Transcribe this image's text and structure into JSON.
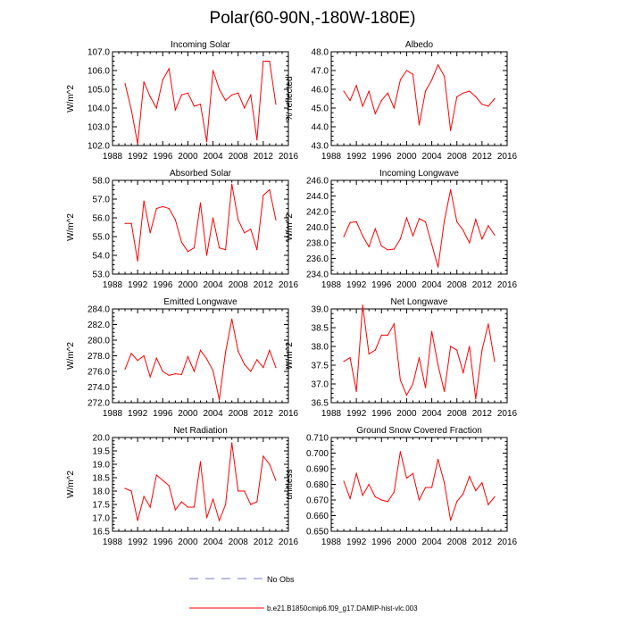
{
  "page_title": "Polar(60-90N,-180W-180E)",
  "series_color": "#ff0000",
  "obs_color": "#7777cc",
  "legend": {
    "obs_label": "No Obs",
    "model_label": "b.e21.B1850cmip6.f09_g17.DAMIP-hist-vlc.003"
  },
  "chart_data": [
    {
      "type": "line",
      "title": "Incoming Solar",
      "xlabel": "",
      "ylabel": "W/m^2",
      "xlim": [
        1988,
        2016
      ],
      "ylim": [
        102.0,
        107.0
      ],
      "x_ticks": [
        "1988",
        "1992",
        "1996",
        "2000",
        "2004",
        "2008",
        "2012",
        "2016"
      ],
      "y_ticks": [
        "102.0",
        "103.0",
        "104.0",
        "105.0",
        "106.0",
        "107.0"
      ],
      "x": [
        1990,
        1991,
        1992,
        1993,
        1994,
        1995,
        1996,
        1997,
        1998,
        1999,
        2000,
        2001,
        2002,
        2003,
        2004,
        2005,
        2006,
        2007,
        2008,
        2009,
        2010,
        2011,
        2012,
        2013,
        2014
      ],
      "series": [
        {
          "name": "b.e21.B1850cmip6.f09_g17.DAMIP-hist-vlc.003",
          "values": [
            105.3,
            103.9,
            102.1,
            105.4,
            104.6,
            104.0,
            105.5,
            106.1,
            103.9,
            104.7,
            104.8,
            104.1,
            104.2,
            102.2,
            106.0,
            105.0,
            104.4,
            104.7,
            104.8,
            104.0,
            104.7,
            102.3,
            106.5,
            106.5,
            104.2
          ]
        }
      ]
    },
    {
      "type": "line",
      "title": "Albedo",
      "xlabel": "",
      "ylabel": "% reflected",
      "xlim": [
        1988,
        2016
      ],
      "ylim": [
        43.0,
        48.0
      ],
      "x_ticks": [
        "1988",
        "1992",
        "1996",
        "2000",
        "2004",
        "2008",
        "2012",
        "2016"
      ],
      "y_ticks": [
        "43.0",
        "44.0",
        "45.0",
        "46.0",
        "47.0",
        "48.0"
      ],
      "x": [
        1990,
        1991,
        1992,
        1993,
        1994,
        1995,
        1996,
        1997,
        1998,
        1999,
        2000,
        2001,
        2002,
        2003,
        2004,
        2005,
        2006,
        2007,
        2008,
        2009,
        2010,
        2011,
        2012,
        2013,
        2014
      ],
      "series": [
        {
          "name": "b.e21.B1850cmip6.f09_g17.DAMIP-hist-vlc.003",
          "values": [
            45.9,
            45.4,
            46.2,
            45.1,
            45.9,
            44.7,
            45.4,
            45.8,
            45.0,
            46.5,
            47.0,
            46.8,
            44.1,
            45.9,
            46.5,
            47.3,
            46.7,
            43.8,
            45.6,
            45.8,
            45.9,
            45.6,
            45.2,
            45.1,
            45.5
          ]
        }
      ]
    },
    {
      "type": "line",
      "title": "Absorbed Solar",
      "xlabel": "",
      "ylabel": "W/m^2",
      "xlim": [
        1988,
        2016
      ],
      "ylim": [
        53.0,
        58.0
      ],
      "x_ticks": [
        "1988",
        "1992",
        "1996",
        "2000",
        "2004",
        "2008",
        "2012",
        "2016"
      ],
      "y_ticks": [
        "53.0",
        "54.0",
        "55.0",
        "56.0",
        "57.0",
        "58.0"
      ],
      "x": [
        1990,
        1991,
        1992,
        1993,
        1994,
        1995,
        1996,
        1997,
        1998,
        1999,
        2000,
        2001,
        2002,
        2003,
        2004,
        2005,
        2006,
        2007,
        2008,
        2009,
        2010,
        2011,
        2012,
        2013,
        2014
      ],
      "series": [
        {
          "name": "b.e21.B1850cmip6.f09_g17.DAMIP-hist-vlc.003",
          "values": [
            55.7,
            55.7,
            53.7,
            56.9,
            55.2,
            56.5,
            56.6,
            56.5,
            55.9,
            54.7,
            54.2,
            54.4,
            56.8,
            54.0,
            56.0,
            54.4,
            54.3,
            57.8,
            55.9,
            55.2,
            55.4,
            54.3,
            57.2,
            57.5,
            55.9
          ]
        }
      ]
    },
    {
      "type": "line",
      "title": "Incoming Longwave",
      "xlabel": "",
      "ylabel": "W/m^2",
      "xlim": [
        1988,
        2016
      ],
      "ylim": [
        234.0,
        246.0
      ],
      "x_ticks": [
        "1988",
        "1992",
        "1996",
        "2000",
        "2004",
        "2008",
        "2012",
        "2016"
      ],
      "y_ticks": [
        "234.0",
        "236.0",
        "238.0",
        "240.0",
        "242.0",
        "244.0",
        "246.0"
      ],
      "x": [
        1990,
        1991,
        1992,
        1993,
        1994,
        1995,
        1996,
        1997,
        1998,
        1999,
        2000,
        2001,
        2002,
        2003,
        2004,
        2005,
        2006,
        2007,
        2008,
        2009,
        2010,
        2011,
        2012,
        2013,
        2014
      ],
      "series": [
        {
          "name": "b.e21.B1850cmip6.f09_g17.DAMIP-hist-vlc.003",
          "values": [
            238.8,
            240.6,
            240.7,
            238.9,
            237.5,
            239.8,
            237.6,
            237.1,
            237.2,
            238.5,
            241.2,
            238.9,
            241.1,
            240.7,
            237.8,
            234.9,
            240.8,
            244.8,
            240.7,
            239.6,
            238.0,
            241.0,
            238.5,
            240.2,
            239.0
          ]
        }
      ]
    },
    {
      "type": "line",
      "title": "Emitted Longwave",
      "xlabel": "",
      "ylabel": "W/m^2",
      "xlim": [
        1988,
        2016
      ],
      "ylim": [
        272.0,
        284.0
      ],
      "x_ticks": [
        "1988",
        "1992",
        "1996",
        "2000",
        "2004",
        "2008",
        "2012",
        "2016"
      ],
      "y_ticks": [
        "272.0",
        "274.0",
        "276.0",
        "278.0",
        "280.0",
        "282.0",
        "284.0"
      ],
      "x": [
        1990,
        1991,
        1992,
        1993,
        1994,
        1995,
        1996,
        1997,
        1998,
        1999,
        2000,
        2001,
        2002,
        2003,
        2004,
        2005,
        2006,
        2007,
        2008,
        2009,
        2010,
        2011,
        2012,
        2013,
        2014
      ],
      "series": [
        {
          "name": "b.e21.B1850cmip6.f09_g17.DAMIP-hist-vlc.003",
          "values": [
            276.3,
            278.3,
            277.4,
            278.0,
            275.3,
            277.7,
            276.0,
            275.5,
            275.7,
            275.6,
            277.9,
            276.0,
            278.7,
            277.6,
            276.1,
            272.4,
            278.5,
            282.7,
            278.6,
            276.9,
            276.0,
            277.5,
            276.5,
            278.7,
            276.5
          ]
        }
      ]
    },
    {
      "type": "line",
      "title": "Net Longwave",
      "xlabel": "",
      "ylabel": "W/m^2",
      "xlim": [
        1988,
        2016
      ],
      "ylim": [
        36.5,
        39.0
      ],
      "x_ticks": [
        "1988",
        "1992",
        "1996",
        "2000",
        "2004",
        "2008",
        "2012",
        "2016"
      ],
      "y_ticks": [
        "36.5",
        "37.0",
        "37.5",
        "38.0",
        "38.5",
        "39.0"
      ],
      "x": [
        1990,
        1991,
        1992,
        1993,
        1994,
        1995,
        1996,
        1997,
        1998,
        1999,
        2000,
        2001,
        2002,
        2003,
        2004,
        2005,
        2006,
        2007,
        2008,
        2009,
        2010,
        2011,
        2012,
        2013,
        2014
      ],
      "series": [
        {
          "name": "b.e21.B1850cmip6.f09_g17.DAMIP-hist-vlc.003",
          "values": [
            37.6,
            37.7,
            36.8,
            39.1,
            37.8,
            37.9,
            38.3,
            38.3,
            38.6,
            37.1,
            36.7,
            37.0,
            37.7,
            36.9,
            38.4,
            37.5,
            36.8,
            38.0,
            37.9,
            37.3,
            38.0,
            36.6,
            37.9,
            38.6,
            37.6
          ]
        }
      ]
    },
    {
      "type": "line",
      "title": "Net Radiation",
      "xlabel": "",
      "ylabel": "W/m^2",
      "xlim": [
        1988,
        2016
      ],
      "ylim": [
        16.5,
        20.0
      ],
      "x_ticks": [
        "1988",
        "1992",
        "1996",
        "2000",
        "2004",
        "2008",
        "2012",
        "2016"
      ],
      "y_ticks": [
        "16.5",
        "17.0",
        "17.5",
        "18.0",
        "18.5",
        "19.0",
        "19.5",
        "20.0"
      ],
      "x": [
        1990,
        1991,
        1992,
        1993,
        1994,
        1995,
        1996,
        1997,
        1998,
        1999,
        2000,
        2001,
        2002,
        2003,
        2004,
        2005,
        2006,
        2007,
        2008,
        2009,
        2010,
        2011,
        2012,
        2013,
        2014
      ],
      "series": [
        {
          "name": "b.e21.B1850cmip6.f09_g17.DAMIP-hist-vlc.003",
          "values": [
            18.1,
            18.0,
            16.9,
            17.8,
            17.4,
            18.6,
            18.4,
            18.2,
            17.3,
            17.6,
            17.4,
            17.4,
            19.1,
            17.0,
            17.7,
            16.9,
            17.5,
            19.8,
            18.0,
            18.0,
            17.5,
            17.6,
            19.3,
            19.0,
            18.4
          ]
        }
      ]
    },
    {
      "type": "line",
      "title": "Ground Snow Covered Fraction",
      "xlabel": "",
      "ylabel": "unitless",
      "xlim": [
        1988,
        2016
      ],
      "ylim": [
        0.65,
        0.71
      ],
      "x_ticks": [
        "1988",
        "1992",
        "1996",
        "2000",
        "2004",
        "2008",
        "2012",
        "2016"
      ],
      "y_ticks": [
        "0.650",
        "0.660",
        "0.670",
        "0.680",
        "0.690",
        "0.700",
        "0.710"
      ],
      "x": [
        1990,
        1991,
        1992,
        1993,
        1994,
        1995,
        1996,
        1997,
        1998,
        1999,
        2000,
        2001,
        2002,
        2003,
        2004,
        2005,
        2006,
        2007,
        2008,
        2009,
        2010,
        2011,
        2012,
        2013,
        2014
      ],
      "series": [
        {
          "name": "b.e21.B1850cmip6.f09_g17.DAMIP-hist-vlc.003",
          "values": [
            0.682,
            0.671,
            0.687,
            0.673,
            0.68,
            0.672,
            0.67,
            0.669,
            0.675,
            0.701,
            0.684,
            0.687,
            0.67,
            0.678,
            0.678,
            0.696,
            0.681,
            0.657,
            0.669,
            0.674,
            0.685,
            0.676,
            0.681,
            0.667,
            0.672
          ]
        }
      ]
    }
  ]
}
